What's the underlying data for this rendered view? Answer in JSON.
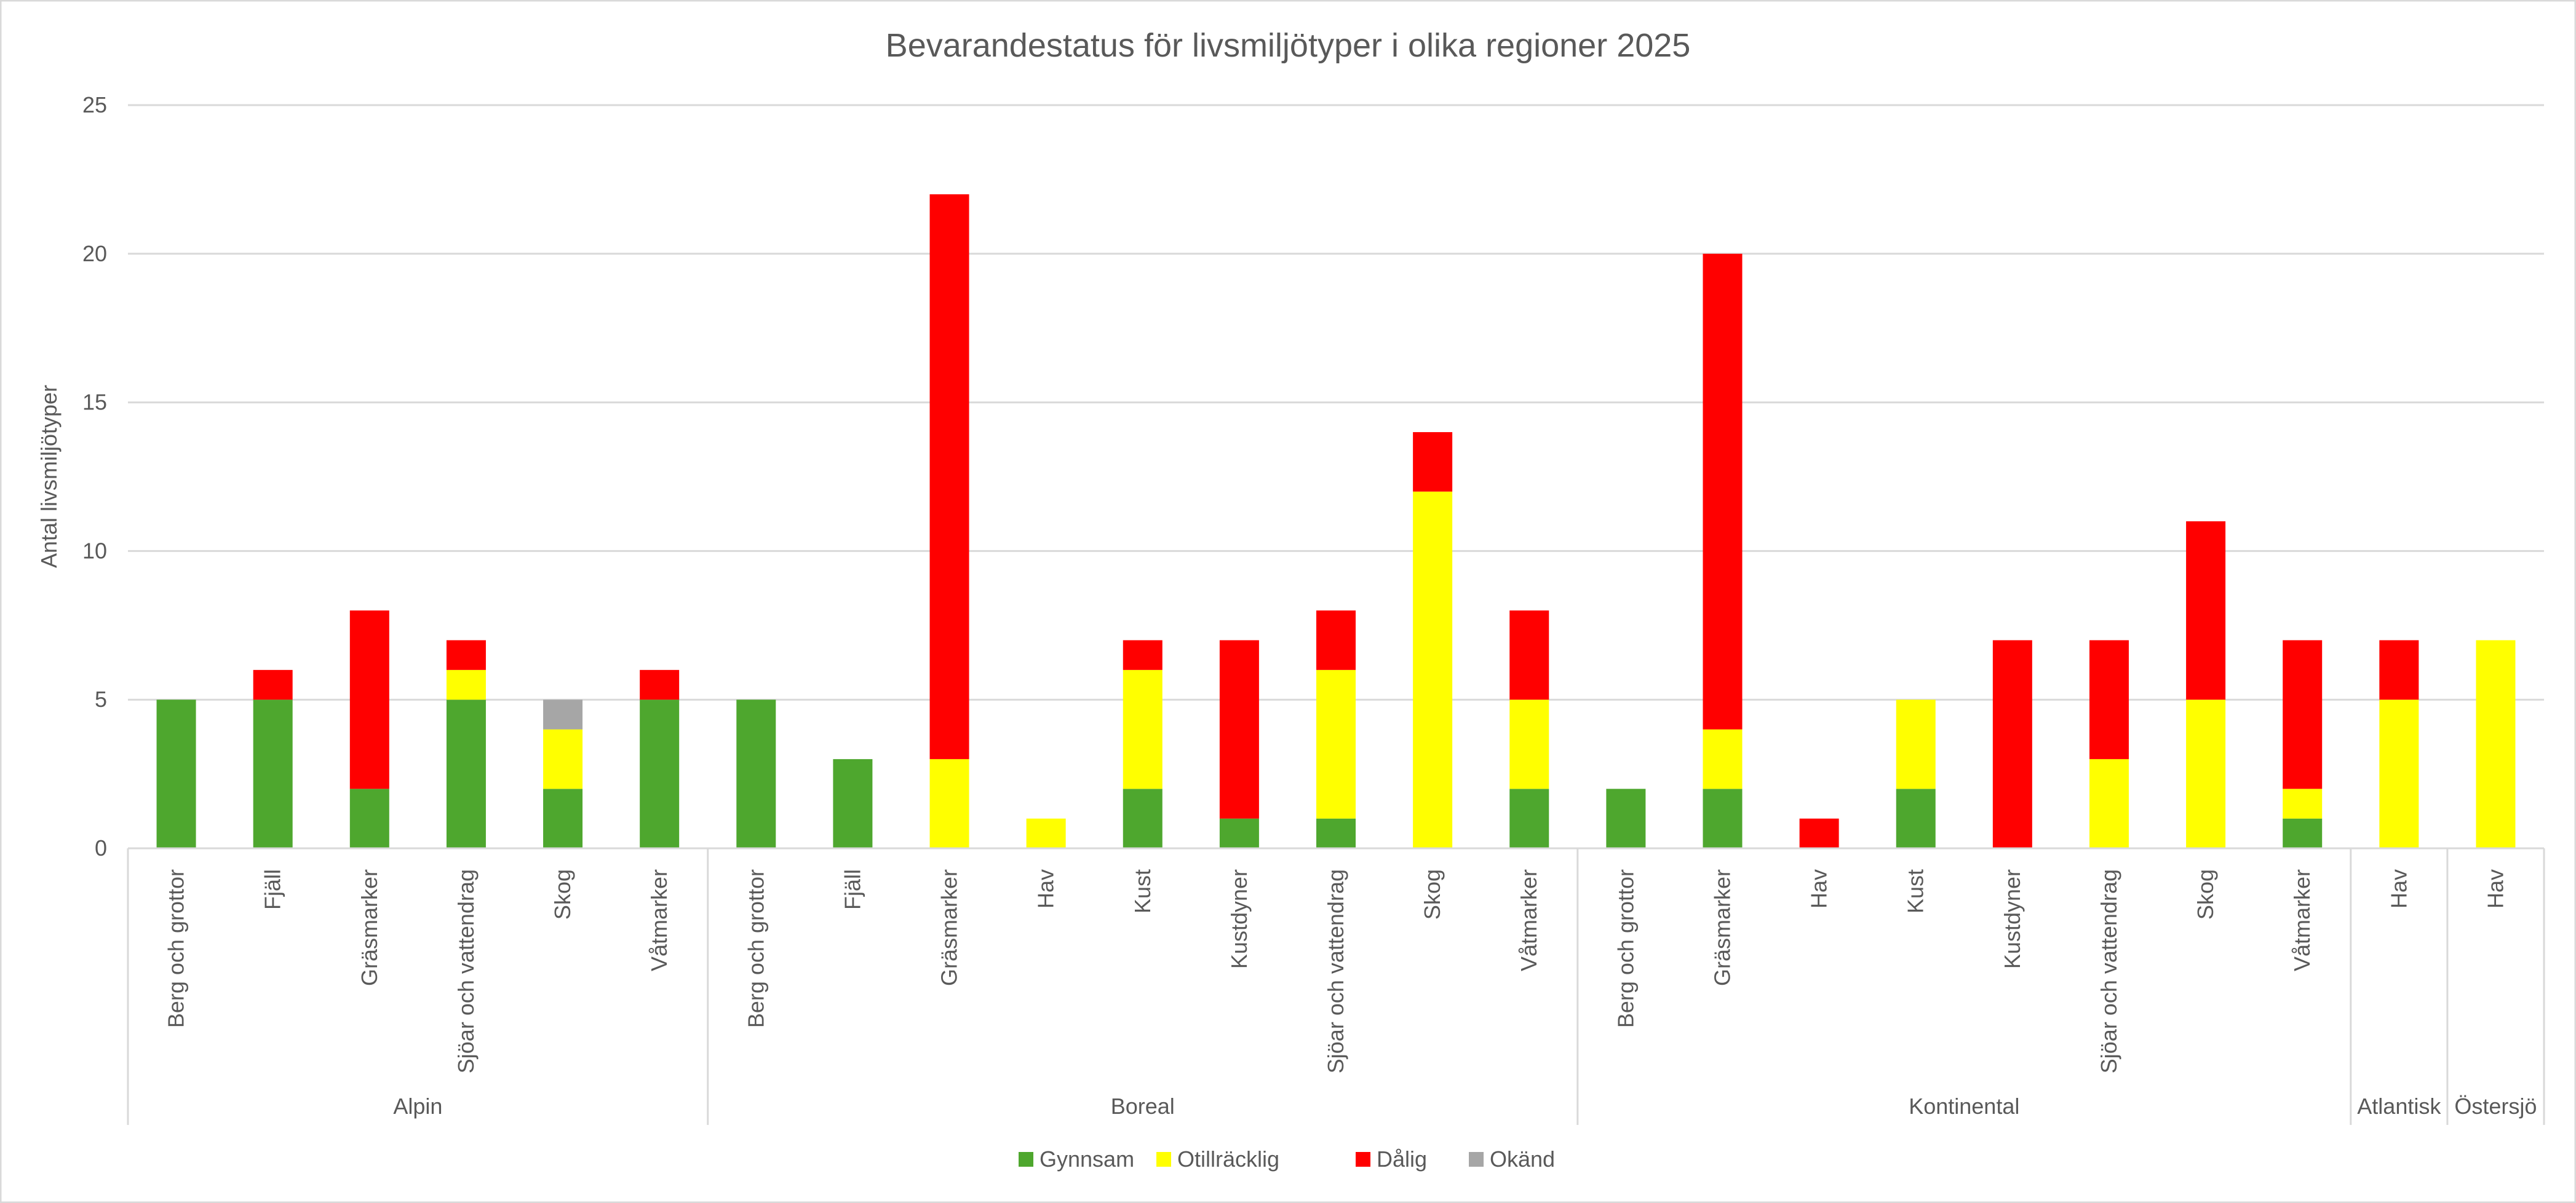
{
  "chart_data": {
    "type": "bar",
    "stacked": true,
    "title": "Bevarandestatus för livsmiljötyper i olika regioner 2025",
    "xlabel": "",
    "ylabel": "Antal livsmiljötyper",
    "ylim": [
      0,
      25
    ],
    "yticks": [
      0,
      5,
      10,
      15,
      20,
      25
    ],
    "grid": true,
    "legend_position": "bottom",
    "groups": [
      {
        "name": "Alpin",
        "categories": [
          "Berg och grottor",
          "Fjäll",
          "Gräsmarker",
          "Sjöar och vattendrag",
          "Skog",
          "Våtmarker"
        ]
      },
      {
        "name": "Boreal",
        "categories": [
          "Berg och grottor",
          "Fjäll",
          "Gräsmarker",
          "Hav",
          "Kust",
          "Kustdyner",
          "Sjöar och vattendrag",
          "Skog",
          "Våtmarker"
        ]
      },
      {
        "name": "Kontinental",
        "categories": [
          "Berg och grottor",
          "Gräsmarker",
          "Hav",
          "Kust",
          "Kustdyner",
          "Sjöar och vattendrag",
          "Skog",
          "Våtmarker"
        ]
      },
      {
        "name": "Atlantisk",
        "categories": [
          "Hav"
        ]
      },
      {
        "name": "Östersjö",
        "categories": [
          "Hav"
        ]
      }
    ],
    "series": [
      {
        "name": "Gynnsam",
        "color": "#4EA72E",
        "values": [
          5,
          5,
          2,
          5,
          2,
          5,
          5,
          3,
          0,
          0,
          2,
          1,
          1,
          0,
          2,
          2,
          2,
          0,
          2,
          0,
          0,
          0,
          1,
          0,
          0
        ]
      },
      {
        "name": "Otillräcklig",
        "color": "#FFFF00",
        "values": [
          0,
          0,
          0,
          1,
          2,
          0,
          0,
          0,
          3,
          1,
          4,
          0,
          5,
          12,
          3,
          0,
          2,
          0,
          3,
          0,
          3,
          5,
          1,
          5,
          7
        ]
      },
      {
        "name": "Dålig",
        "color": "#FF0000",
        "values": [
          0,
          1,
          6,
          1,
          0,
          1,
          0,
          0,
          19,
          0,
          1,
          6,
          2,
          2,
          3,
          0,
          16,
          1,
          0,
          7,
          4,
          6,
          5,
          2,
          0
        ]
      },
      {
        "name": "Okänd",
        "color": "#A6A6A6",
        "values": [
          0,
          0,
          0,
          0,
          1,
          0,
          0,
          0,
          0,
          0,
          0,
          0,
          0,
          0,
          0,
          0,
          0,
          0,
          0,
          0,
          0,
          0,
          0,
          0,
          0
        ]
      }
    ]
  }
}
